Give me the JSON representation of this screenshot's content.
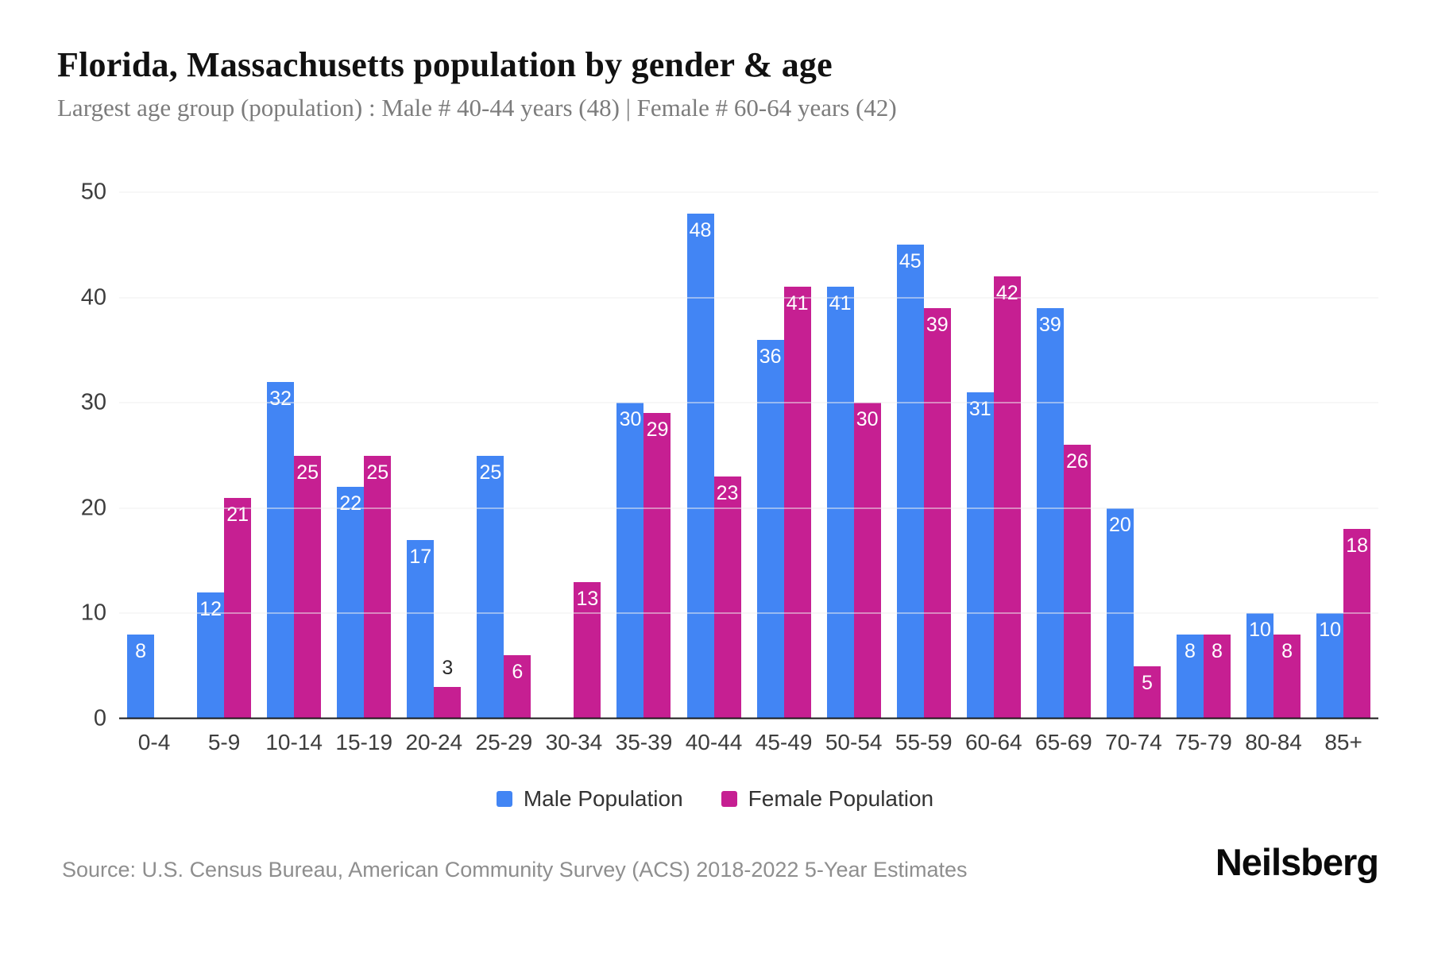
{
  "header": {
    "title": "Florida, Massachusetts population by gender & age",
    "subtitle": "Largest age group (population) : Male # 40-44 years (48) | Female # 60-64 years (42)"
  },
  "chart_data": {
    "type": "bar",
    "title": "Florida, Massachusetts population by gender & age",
    "subtitle": "Largest age group (population) : Male # 40-44 years (48) | Female # 60-64 years (42)",
    "categories": [
      "0-4",
      "5-9",
      "10-14",
      "15-19",
      "20-24",
      "25-29",
      "30-34",
      "35-39",
      "40-44",
      "45-49",
      "50-54",
      "55-59",
      "60-64",
      "65-69",
      "70-74",
      "75-79",
      "80-84",
      "85+"
    ],
    "series": [
      {
        "name": "Male Population",
        "color": "#4285f4",
        "values": [
          8,
          12,
          32,
          22,
          17,
          25,
          0,
          30,
          48,
          36,
          41,
          45,
          31,
          39,
          20,
          8,
          10,
          10
        ]
      },
      {
        "name": "Female Population",
        "color": "#c61f92",
        "values": [
          0,
          21,
          25,
          25,
          3,
          6,
          13,
          29,
          23,
          41,
          30,
          39,
          42,
          26,
          5,
          8,
          8,
          18
        ]
      }
    ],
    "xlabel": "",
    "ylabel": "",
    "ylim": [
      0,
      50
    ],
    "yticks": [
      0,
      10,
      20,
      30,
      40,
      50
    ],
    "grid": true,
    "bar_value_labels": true,
    "legend_position": "bottom"
  },
  "legend": {
    "items": [
      {
        "label": "Male Population",
        "color": "#4285f4"
      },
      {
        "label": "Female Population",
        "color": "#c61f92"
      }
    ]
  },
  "footer": {
    "source": "Source: U.S. Census Bureau, American Community Survey (ACS) 2018-2022 5-Year Estimates",
    "brand": "Neilsberg"
  }
}
